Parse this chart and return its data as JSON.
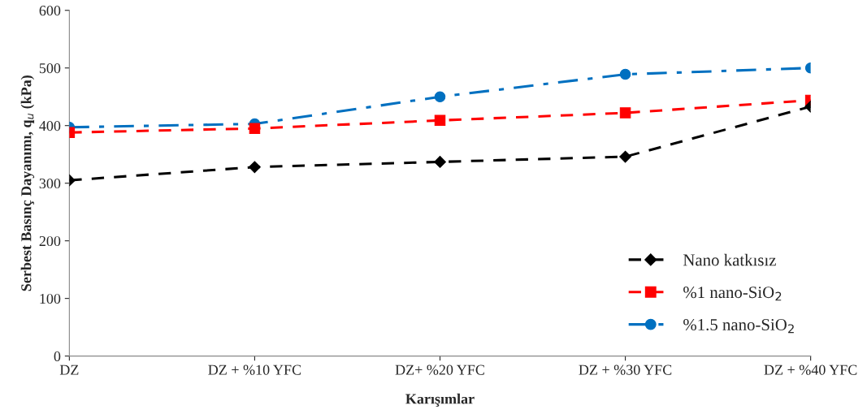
{
  "chart_data": {
    "type": "line",
    "xlabel": "Karışımlar",
    "ylabel": "Serbest Basınç Dayanımı, q$_{u}$ (kPa)",
    "categories": [
      "DZ",
      "DZ + %10 YFC",
      "DZ+ %20 YFC",
      "DZ + %30 YFC",
      "DZ + %40 YFC"
    ],
    "series": [
      {
        "name": "Nano katkısız",
        "color": "#000000",
        "marker": "diamond",
        "line_style": "dashed",
        "values": [
          305,
          328,
          337,
          346,
          433
        ]
      },
      {
        "name": "%1 nano-SiO$_{2}$",
        "color": "#ff0000",
        "marker": "square",
        "line_style": "dashed",
        "values": [
          388,
          395,
          409,
          422,
          444
        ]
      },
      {
        "name": "%1.5 nano-SiO$_{2}$",
        "color": "#0070c0",
        "marker": "circle",
        "line_style": "dashdot",
        "values": [
          397,
          403,
          450,
          489,
          500
        ]
      }
    ],
    "ylim": [
      0,
      600
    ],
    "yticks": [
      0,
      100,
      200,
      300,
      400,
      500,
      600
    ],
    "grid": false,
    "legend": "bottom right"
  }
}
